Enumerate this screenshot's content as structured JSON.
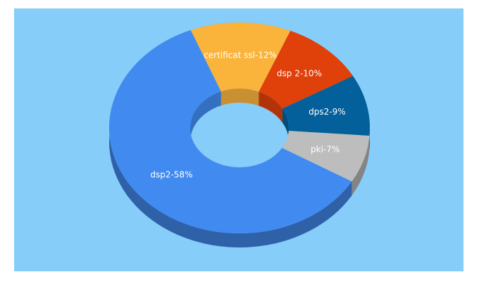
{
  "chart_data": {
    "type": "donut",
    "values": [
      12,
      10,
      9,
      7,
      58
    ],
    "value_labels": [
      "certificat ssl-12%",
      "dsp 2-10%",
      "dps2-9%",
      "pki-7%",
      "dsp2-58%"
    ],
    "colors": [
      "#fab43c",
      "#e0400a",
      "#03609a",
      "#bdbdbd",
      "#418bf0"
    ]
  }
}
